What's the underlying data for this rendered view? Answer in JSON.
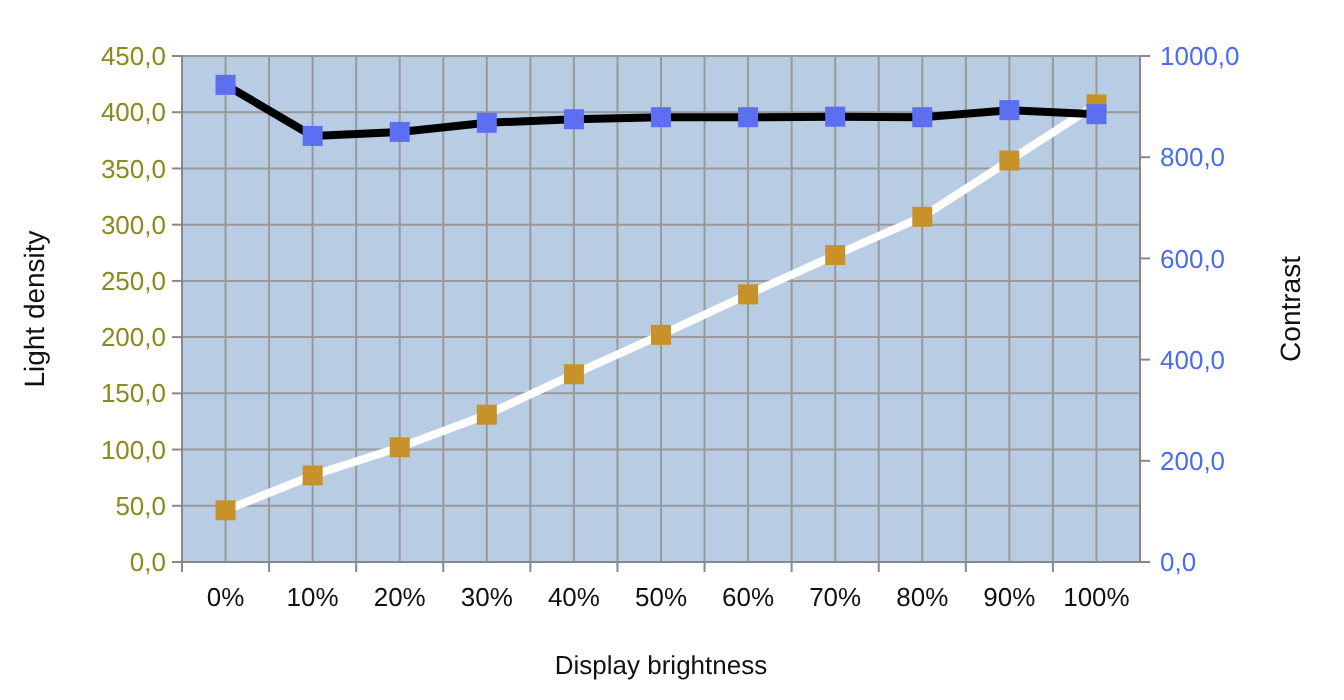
{
  "chart_data": {
    "type": "line",
    "xlabel": "Display brightness",
    "ylabel": "Light density",
    "y2label": "Contrast",
    "categories": [
      "0%",
      "10%",
      "20%",
      "30%",
      "40%",
      "50%",
      "60%",
      "70%",
      "80%",
      "90%",
      "100%"
    ],
    "series": [
      {
        "color": "#ffffff",
        "values": [
          46,
          77,
          102,
          131,
          167,
          202,
          238,
          273,
          307,
          357,
          407
        ]
      },
      {
        "color": "#000000",
        "axis": "y2",
        "values": [
          943,
          842,
          850,
          868,
          875,
          879,
          879,
          880,
          879,
          893,
          885
        ]
      }
    ],
    "ylim": [
      0,
      450
    ],
    "yticks": [
      {
        "value": 0,
        "label": "0,0"
      },
      {
        "value": 50,
        "label": "50,0"
      },
      {
        "value": 100,
        "label": "100,0"
      },
      {
        "value": 150,
        "label": "150,0"
      },
      {
        "value": 200,
        "label": "200,0"
      },
      {
        "value": 250,
        "label": "250,0"
      },
      {
        "value": 300,
        "label": "300,0"
      },
      {
        "value": 350,
        "label": "350,0"
      },
      {
        "value": 400,
        "label": "400,0"
      },
      {
        "value": 450,
        "label": "450,0"
      }
    ],
    "y2lim": [
      0,
      1000
    ],
    "y2ticks": [
      {
        "value": 0,
        "label": "0,0"
      },
      {
        "value": 200,
        "label": "200,0"
      },
      {
        "value": 400,
        "label": "400,0"
      },
      {
        "value": 600,
        "label": "600,0"
      },
      {
        "value": 800,
        "label": "800,0"
      },
      {
        "value": 1000,
        "label": "1000,0"
      }
    ],
    "grid": true,
    "marker": "square",
    "line_style": "solid"
  }
}
